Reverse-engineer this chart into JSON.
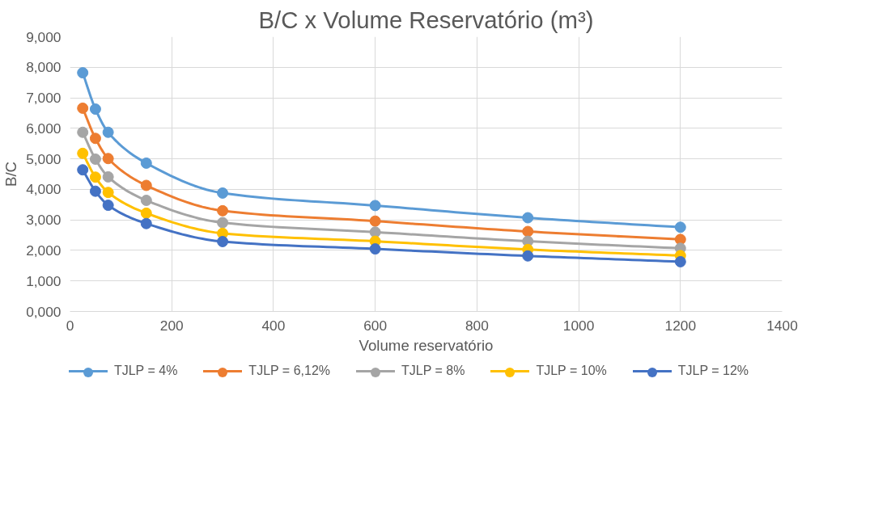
{
  "chart_data": {
    "type": "line",
    "title": "B/C x Volume Reservatório (m³)",
    "xlabel": "Volume reservatório",
    "ylabel": "B/C",
    "x": [
      25,
      50,
      75,
      150,
      300,
      600,
      900,
      1200
    ],
    "series": [
      {
        "name": "TJLP = 4%",
        "color": "#5b9bd5",
        "values": [
          7.82,
          6.63,
          5.87,
          4.86,
          3.88,
          3.47,
          3.07,
          2.76
        ]
      },
      {
        "name": "TJLP = 6,12%",
        "color": "#ed7d31",
        "values": [
          6.66,
          5.67,
          5.01,
          4.13,
          3.3,
          2.96,
          2.62,
          2.36
        ]
      },
      {
        "name": "TJLP = 8%",
        "color": "#a5a5a5",
        "values": [
          5.87,
          4.99,
          4.41,
          3.64,
          2.91,
          2.6,
          2.3,
          2.07
        ]
      },
      {
        "name": "TJLP = 10%",
        "color": "#ffc000",
        "values": [
          5.18,
          4.4,
          3.9,
          3.22,
          2.56,
          2.3,
          2.03,
          1.83
        ]
      },
      {
        "name": "TJLP = 12%",
        "color": "#4472c4",
        "values": [
          4.64,
          3.94,
          3.48,
          2.88,
          2.29,
          2.05,
          1.82,
          1.63
        ]
      }
    ],
    "xlim": [
      0,
      1400
    ],
    "xticks": [
      0,
      200,
      400,
      600,
      800,
      1000,
      1200,
      1400
    ],
    "ylim": [
      0,
      9
    ],
    "yticks": [
      {
        "value": 0,
        "label": "0,000"
      },
      {
        "value": 1,
        "label": "1,000"
      },
      {
        "value": 2,
        "label": "2,000"
      },
      {
        "value": 3,
        "label": "3,000"
      },
      {
        "value": 4,
        "label": "4,000"
      },
      {
        "value": 5,
        "label": "5,000"
      },
      {
        "value": 6,
        "label": "6,000"
      },
      {
        "value": 7,
        "label": "7,000"
      },
      {
        "value": 8,
        "label": "8,000"
      },
      {
        "value": 9,
        "label": "9,000"
      }
    ],
    "grid": true,
    "legend": "bottom",
    "marker": "circle",
    "line_style": "solid"
  }
}
